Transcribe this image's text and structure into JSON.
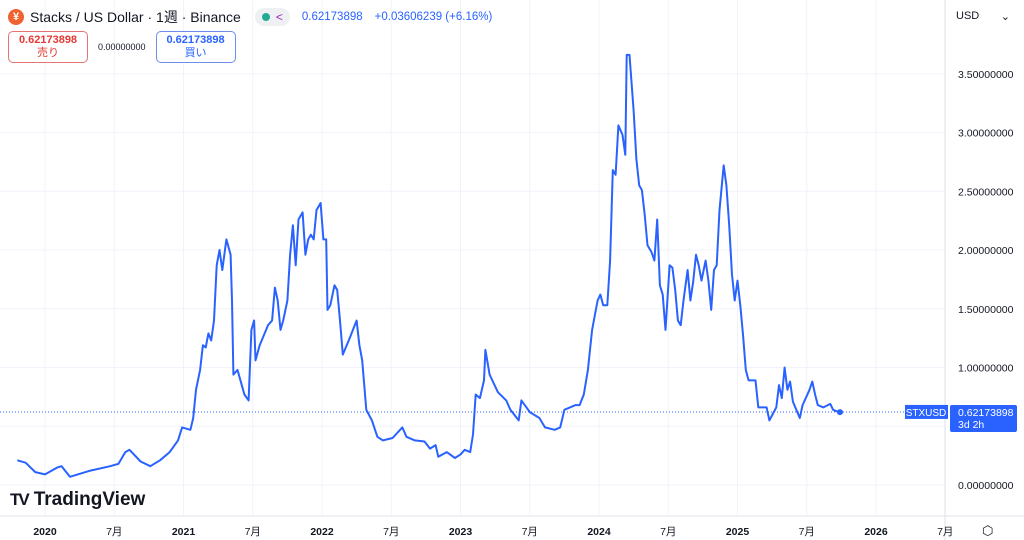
{
  "header": {
    "coin_icon": "stacks-coin-icon",
    "title": "Stacks / US Dollar · 1週 · Binance",
    "last_price": "0.62173898",
    "change": "+0.03606239 (+6.16%)"
  },
  "trade": {
    "sell_price": "0.62173898",
    "sell_label": "売り",
    "spread": "0.00000000",
    "buy_price": "0.62173898",
    "buy_label": "買い"
  },
  "currency": "USD",
  "price_tag": {
    "symbol": "STXUSD",
    "price": "0.62173898",
    "countdown": "3d 2h"
  },
  "logo": "TradingView",
  "colors": {
    "line": "#2962ff",
    "label_bg": "#2962ff",
    "grid": "#f0f3fa"
  },
  "chart_data": {
    "type": "line",
    "title": "Stacks / US Dollar · 1週 · Binance",
    "yticks": [
      {
        "value": 3.5,
        "label": "3.50000000"
      },
      {
        "value": 3.0,
        "label": "3.00000000"
      },
      {
        "value": 2.5,
        "label": "2.50000000"
      },
      {
        "value": 2.0,
        "label": "2.00000000"
      },
      {
        "value": 1.5,
        "label": "1.50000000"
      },
      {
        "value": 1.0,
        "label": "1.00000000"
      },
      {
        "value": 0.0,
        "label": "0.00000000"
      }
    ],
    "xticks": [
      {
        "value": 2020.0,
        "label": "2020",
        "bold": true
      },
      {
        "value": 2020.5,
        "label": "7月"
      },
      {
        "value": 2021.0,
        "label": "2021",
        "bold": true
      },
      {
        "value": 2021.5,
        "label": "7月"
      },
      {
        "value": 2022.0,
        "label": "2022",
        "bold": true
      },
      {
        "value": 2022.5,
        "label": "7月"
      },
      {
        "value": 2023.0,
        "label": "2023",
        "bold": true
      },
      {
        "value": 2023.5,
        "label": "7月"
      },
      {
        "value": 2024.0,
        "label": "2024",
        "bold": true
      },
      {
        "value": 2024.5,
        "label": "7月"
      },
      {
        "value": 2025.0,
        "label": "2025",
        "bold": true
      },
      {
        "value": 2025.5,
        "label": "7月"
      },
      {
        "value": 2026.0,
        "label": "2026",
        "bold": true
      },
      {
        "value": 2026.5,
        "label": "7月"
      }
    ],
    "last_value": 0.62173898,
    "series": [
      {
        "name": "STXUSD",
        "points": [
          [
            2019.8,
            0.21
          ],
          [
            2019.86,
            0.19
          ],
          [
            2019.93,
            0.11
          ],
          [
            2020.0,
            0.09
          ],
          [
            2020.09,
            0.15
          ],
          [
            2020.12,
            0.16
          ],
          [
            2020.18,
            0.07
          ],
          [
            2020.32,
            0.12
          ],
          [
            2020.47,
            0.16
          ],
          [
            2020.53,
            0.18
          ],
          [
            2020.58,
            0.28
          ],
          [
            2020.61,
            0.3
          ],
          [
            2020.69,
            0.2
          ],
          [
            2020.76,
            0.16
          ],
          [
            2020.83,
            0.21
          ],
          [
            2020.9,
            0.28
          ],
          [
            2020.96,
            0.38
          ],
          [
            2020.99,
            0.49
          ],
          [
            2021.05,
            0.47
          ],
          [
            2021.07,
            0.57
          ],
          [
            2021.09,
            0.81
          ],
          [
            2021.12,
            0.98
          ],
          [
            2021.14,
            1.19
          ],
          [
            2021.16,
            1.17
          ],
          [
            2021.18,
            1.29
          ],
          [
            2021.2,
            1.23
          ],
          [
            2021.22,
            1.4
          ],
          [
            2021.24,
            1.87
          ],
          [
            2021.26,
            2.0
          ],
          [
            2021.28,
            1.83
          ],
          [
            2021.31,
            2.09
          ],
          [
            2021.34,
            1.96
          ],
          [
            2021.35,
            1.57
          ],
          [
            2021.36,
            0.94
          ],
          [
            2021.39,
            0.98
          ],
          [
            2021.44,
            0.77
          ],
          [
            2021.47,
            0.72
          ],
          [
            2021.49,
            1.32
          ],
          [
            2021.51,
            1.4
          ],
          [
            2021.52,
            1.06
          ],
          [
            2021.55,
            1.19
          ],
          [
            2021.61,
            1.36
          ],
          [
            2021.64,
            1.4
          ],
          [
            2021.66,
            1.68
          ],
          [
            2021.68,
            1.57
          ],
          [
            2021.7,
            1.32
          ],
          [
            2021.72,
            1.4
          ],
          [
            2021.75,
            1.57
          ],
          [
            2021.77,
            1.96
          ],
          [
            2021.79,
            2.21
          ],
          [
            2021.81,
            1.87
          ],
          [
            2021.83,
            2.26
          ],
          [
            2021.86,
            2.32
          ],
          [
            2021.88,
            1.96
          ],
          [
            2021.9,
            2.09
          ],
          [
            2021.92,
            2.13
          ],
          [
            2021.94,
            2.09
          ],
          [
            2021.96,
            2.34
          ],
          [
            2021.99,
            2.4
          ],
          [
            2022.01,
            2.09
          ],
          [
            2022.03,
            2.09
          ],
          [
            2022.04,
            1.49
          ],
          [
            2022.06,
            1.53
          ],
          [
            2022.09,
            1.7
          ],
          [
            2022.11,
            1.66
          ],
          [
            2022.13,
            1.4
          ],
          [
            2022.15,
            1.11
          ],
          [
            2022.2,
            1.25
          ],
          [
            2022.25,
            1.4
          ],
          [
            2022.27,
            1.19
          ],
          [
            2022.29,
            1.06
          ],
          [
            2022.32,
            0.64
          ],
          [
            2022.36,
            0.55
          ],
          [
            2022.4,
            0.41
          ],
          [
            2022.44,
            0.38
          ],
          [
            2022.51,
            0.4
          ],
          [
            2022.58,
            0.49
          ],
          [
            2022.61,
            0.41
          ],
          [
            2022.67,
            0.38
          ],
          [
            2022.74,
            0.37
          ],
          [
            2022.78,
            0.31
          ],
          [
            2022.82,
            0.34
          ],
          [
            2022.84,
            0.24
          ],
          [
            2022.9,
            0.28
          ],
          [
            2022.96,
            0.23
          ],
          [
            2023.0,
            0.26
          ],
          [
            2023.03,
            0.3
          ],
          [
            2023.07,
            0.28
          ],
          [
            2023.09,
            0.43
          ],
          [
            2023.11,
            0.77
          ],
          [
            2023.14,
            0.74
          ],
          [
            2023.17,
            0.89
          ],
          [
            2023.18,
            1.15
          ],
          [
            2023.21,
            0.94
          ],
          [
            2023.27,
            0.79
          ],
          [
            2023.33,
            0.72
          ],
          [
            2023.36,
            0.64
          ],
          [
            2023.42,
            0.55
          ],
          [
            2023.44,
            0.72
          ],
          [
            2023.5,
            0.62
          ],
          [
            2023.57,
            0.57
          ],
          [
            2023.61,
            0.49
          ],
          [
            2023.68,
            0.47
          ],
          [
            2023.72,
            0.49
          ],
          [
            2023.75,
            0.64
          ],
          [
            2023.83,
            0.68
          ],
          [
            2023.86,
            0.68
          ],
          [
            2023.89,
            0.77
          ],
          [
            2023.92,
            0.98
          ],
          [
            2023.95,
            1.32
          ],
          [
            2023.99,
            1.57
          ],
          [
            2024.01,
            1.62
          ],
          [
            2024.03,
            1.53
          ],
          [
            2024.06,
            1.53
          ],
          [
            2024.08,
            1.91
          ],
          [
            2024.1,
            2.68
          ],
          [
            2024.12,
            2.64
          ],
          [
            2024.14,
            3.06
          ],
          [
            2024.17,
            2.98
          ],
          [
            2024.19,
            2.81
          ],
          [
            2024.2,
            3.66
          ],
          [
            2024.22,
            3.66
          ],
          [
            2024.25,
            3.19
          ],
          [
            2024.27,
            2.77
          ],
          [
            2024.29,
            2.55
          ],
          [
            2024.31,
            2.51
          ],
          [
            2024.33,
            2.3
          ],
          [
            2024.35,
            2.04
          ],
          [
            2024.38,
            1.98
          ],
          [
            2024.4,
            1.91
          ],
          [
            2024.42,
            2.26
          ],
          [
            2024.44,
            1.7
          ],
          [
            2024.46,
            1.62
          ],
          [
            2024.48,
            1.32
          ],
          [
            2024.51,
            1.87
          ],
          [
            2024.53,
            1.85
          ],
          [
            2024.55,
            1.66
          ],
          [
            2024.57,
            1.4
          ],
          [
            2024.59,
            1.36
          ],
          [
            2024.61,
            1.57
          ],
          [
            2024.64,
            1.83
          ],
          [
            2024.66,
            1.57
          ],
          [
            2024.68,
            1.73
          ],
          [
            2024.7,
            1.96
          ],
          [
            2024.72,
            1.87
          ],
          [
            2024.74,
            1.74
          ],
          [
            2024.77,
            1.91
          ],
          [
            2024.79,
            1.74
          ],
          [
            2024.81,
            1.49
          ],
          [
            2024.83,
            1.83
          ],
          [
            2024.85,
            1.87
          ],
          [
            2024.87,
            2.34
          ],
          [
            2024.9,
            2.72
          ],
          [
            2024.92,
            2.55
          ],
          [
            2024.94,
            2.21
          ],
          [
            2024.96,
            1.79
          ],
          [
            2024.98,
            1.57
          ],
          [
            2025.0,
            1.74
          ],
          [
            2025.02,
            1.53
          ],
          [
            2025.04,
            1.28
          ],
          [
            2025.06,
            0.98
          ],
          [
            2025.08,
            0.89
          ],
          [
            2025.13,
            0.89
          ],
          [
            2025.15,
            0.66
          ],
          [
            2025.21,
            0.66
          ],
          [
            2025.23,
            0.55
          ],
          [
            2025.28,
            0.66
          ],
          [
            2025.3,
            0.85
          ],
          [
            2025.32,
            0.74
          ],
          [
            2025.34,
            1.0
          ],
          [
            2025.36,
            0.81
          ],
          [
            2025.38,
            0.88
          ],
          [
            2025.4,
            0.71
          ],
          [
            2025.45,
            0.57
          ],
          [
            2025.47,
            0.68
          ],
          [
            2025.52,
            0.81
          ],
          [
            2025.54,
            0.88
          ],
          [
            2025.56,
            0.77
          ],
          [
            2025.58,
            0.68
          ],
          [
            2025.62,
            0.66
          ],
          [
            2025.67,
            0.69
          ],
          [
            2025.69,
            0.64
          ],
          [
            2025.73,
            0.62
          ],
          [
            2025.74,
            0.62
          ]
        ]
      }
    ]
  }
}
